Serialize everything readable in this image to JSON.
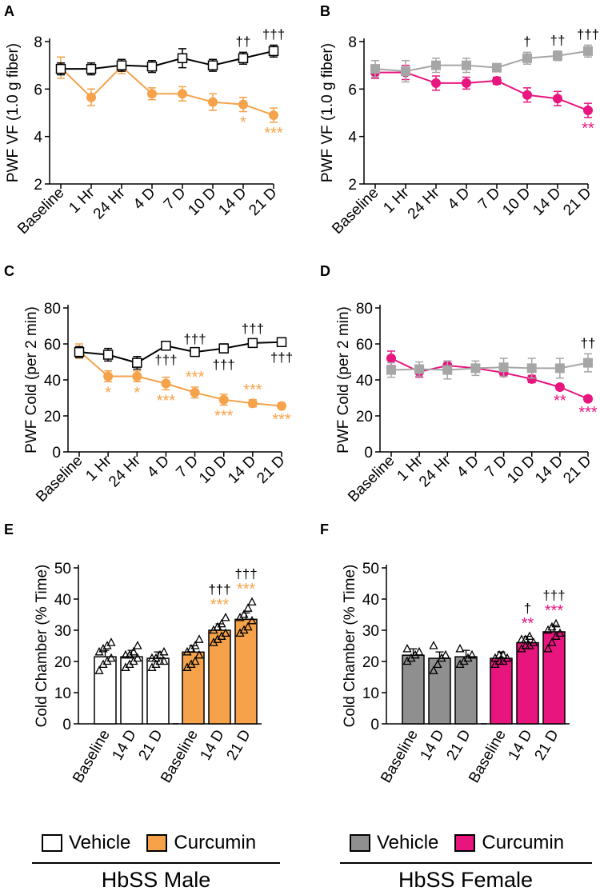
{
  "colors": {
    "vehicle_male": "#ffffff",
    "curcumin_male": "#f5a24a",
    "vehicle_female": "#a6a6a6",
    "curcumin_female": "#e8157f",
    "vehicle_female_bar": "#8f8f8f",
    "vehicle_male_line": "#000000"
  },
  "chart_data": [
    {
      "panel": "A",
      "type": "line",
      "ylabel": "PWF VF (1.0 g fiber)",
      "ylim": [
        2,
        8
      ],
      "yticks": [
        2,
        4,
        6,
        8
      ],
      "categories": [
        "Baseline",
        "1 Hr",
        "24 Hr",
        "4 D",
        "7 D",
        "10 D",
        "14 D",
        "21 D"
      ],
      "series": [
        {
          "name": "Vehicle",
          "values": [
            6.85,
            6.85,
            7.0,
            6.95,
            7.3,
            7.0,
            7.3,
            7.6
          ],
          "err": [
            0.25,
            0.25,
            0.25,
            0.25,
            0.4,
            0.25,
            0.25,
            0.25
          ]
        },
        {
          "name": "Curcumin",
          "values": [
            6.9,
            5.65,
            6.95,
            5.8,
            5.8,
            5.45,
            5.35,
            4.9
          ],
          "err": [
            0.45,
            0.35,
            0.3,
            0.25,
            0.3,
            0.35,
            0.3,
            0.3
          ]
        }
      ],
      "annotations_vehicle": [
        {
          "index": 6,
          "text": "††"
        },
        {
          "index": 7,
          "text": "†††"
        }
      ],
      "annotations_curcumin": [
        {
          "index": 6,
          "text": "*"
        },
        {
          "index": 7,
          "text": "***"
        }
      ]
    },
    {
      "panel": "B",
      "type": "line",
      "ylabel": "PWF VF (1.0 g fiber)",
      "ylim": [
        2,
        8
      ],
      "yticks": [
        2,
        4,
        6,
        8
      ],
      "categories": [
        "Baseline",
        "1 Hr",
        "24 Hr",
        "4 D",
        "7 D",
        "10 D",
        "14 D",
        "21 D"
      ],
      "series": [
        {
          "name": "Vehicle",
          "values": [
            6.85,
            6.75,
            7.0,
            7.0,
            6.9,
            7.3,
            7.4,
            7.6
          ],
          "err": [
            0.35,
            0.45,
            0.3,
            0.3,
            0.15,
            0.25,
            0.2,
            0.25
          ]
        },
        {
          "name": "Curcumin",
          "values": [
            6.7,
            6.7,
            6.25,
            6.25,
            6.35,
            5.75,
            5.6,
            5.1
          ],
          "err": [
            0.25,
            0.3,
            0.3,
            0.25,
            0.15,
            0.3,
            0.3,
            0.3
          ]
        }
      ],
      "annotations_vehicle": [
        {
          "index": 5,
          "text": "†"
        },
        {
          "index": 6,
          "text": "††"
        },
        {
          "index": 7,
          "text": "†††"
        }
      ],
      "annotations_curcumin": [
        {
          "index": 7,
          "text": "**"
        }
      ]
    },
    {
      "panel": "C",
      "type": "line",
      "ylabel": "PWF Cold (per 2 min)",
      "ylim": [
        0,
        80
      ],
      "yticks": [
        0,
        20,
        40,
        60,
        80
      ],
      "categories": [
        "Baseline",
        "1 Hr",
        "24 Hr",
        "4 D",
        "7 D",
        "10 D",
        "14 D",
        "21 D"
      ],
      "series": [
        {
          "name": "Vehicle",
          "values": [
            55.5,
            54,
            49.5,
            59,
            55.5,
            57.5,
            60.5,
            61
          ],
          "err": [
            3,
            3.5,
            3.5,
            1.5,
            2,
            2.5,
            2,
            2
          ]
        },
        {
          "name": "Curcumin",
          "values": [
            56,
            42,
            42,
            38,
            33,
            29,
            27,
            25.5
          ],
          "err": [
            4,
            3,
            3,
            3.5,
            3,
            3,
            2,
            1.5
          ]
        }
      ],
      "annotations_vehicle": [
        {
          "index": 3,
          "text": "†††"
        },
        {
          "index": 4,
          "text": "†††"
        },
        {
          "index": 5,
          "text": "†††"
        },
        {
          "index": 6,
          "text": "†††"
        },
        {
          "index": 7,
          "text": "†††"
        }
      ],
      "annotations_curcumin": [
        {
          "index": 1,
          "text": "*"
        },
        {
          "index": 2,
          "text": "*"
        },
        {
          "index": 3,
          "text": "***"
        },
        {
          "index": 4,
          "text": "***"
        },
        {
          "index": 5,
          "text": "***"
        },
        {
          "index": 6,
          "text": "***"
        },
        {
          "index": 7,
          "text": "***"
        }
      ]
    },
    {
      "panel": "D",
      "type": "line",
      "ylabel": "PWF Cold (per 2 min)",
      "ylim": [
        0,
        80
      ],
      "yticks": [
        0,
        20,
        40,
        60,
        80
      ],
      "categories": [
        "Baseline",
        "1 Hr",
        "24 Hr",
        "4 D",
        "7 D",
        "10 D",
        "14 D",
        "21 D"
      ],
      "series": [
        {
          "name": "Vehicle",
          "values": [
            45.5,
            46,
            45.5,
            46.5,
            47,
            46.5,
            46.5,
            49.5
          ],
          "err": [
            4,
            4,
            5,
            4,
            5,
            5.5,
            5.5,
            5
          ]
        },
        {
          "name": "Curcumin",
          "values": [
            52,
            44.5,
            48,
            46.5,
            44,
            40.5,
            36,
            29.5
          ],
          "err": [
            4,
            3,
            2.5,
            2,
            2,
            2,
            1.5,
            1.5
          ]
        }
      ],
      "annotations_vehicle": [
        {
          "index": 7,
          "text": "††"
        }
      ],
      "annotations_curcumin": [
        {
          "index": 6,
          "text": "**"
        },
        {
          "index": 7,
          "text": "***"
        }
      ]
    },
    {
      "panel": "E",
      "type": "bar",
      "ylabel": "Cold Chamber (% Time)",
      "ylim": [
        0,
        50
      ],
      "yticks": [
        0,
        10,
        20,
        30,
        40,
        50
      ],
      "categories": [
        "Baseline",
        "14 D",
        "21 D",
        "Baseline",
        "14 D",
        "21 D"
      ],
      "groups": [
        "Vehicle",
        "Vehicle",
        "Vehicle",
        "Curcumin",
        "Curcumin",
        "Curcumin"
      ],
      "values": [
        21.5,
        21.5,
        21,
        23,
        30,
        33.5
      ],
      "points": [
        [
          17,
          19,
          20,
          21,
          23,
          24,
          25,
          26
        ],
        [
          18,
          19,
          20,
          21,
          22,
          22,
          23,
          25
        ],
        [
          18,
          19,
          20,
          20,
          21,
          21,
          22,
          23
        ],
        [
          18,
          19,
          20,
          22,
          23,
          24,
          25,
          27
        ],
        [
          26,
          27,
          28,
          29,
          30,
          31,
          32,
          34
        ],
        [
          29,
          30,
          31,
          33,
          34,
          35,
          37,
          39
        ]
      ],
      "annotations_sig": [
        {
          "index": 4,
          "text": "***"
        },
        {
          "index": 5,
          "text": "***"
        }
      ],
      "annotations_dagger": [
        {
          "index": 4,
          "text": "†††"
        },
        {
          "index": 5,
          "text": "†††"
        }
      ]
    },
    {
      "panel": "F",
      "type": "bar",
      "ylabel": "Cold Chamber (% Time)",
      "ylim": [
        0,
        50
      ],
      "yticks": [
        0,
        10,
        20,
        30,
        40,
        50
      ],
      "categories": [
        "Baseline",
        "14 D",
        "21 D",
        "Baseline",
        "14 D",
        "21 D"
      ],
      "groups": [
        "Vehicle",
        "Vehicle",
        "Vehicle",
        "Curcumin",
        "Curcumin",
        "Curcumin"
      ],
      "values": [
        22,
        21,
        21.5,
        21,
        26,
        29.5
      ],
      "points": [
        [
          20,
          21,
          22,
          23,
          24
        ],
        [
          17,
          19,
          21,
          22,
          25
        ],
        [
          19,
          20,
          21,
          22,
          24
        ],
        [
          19,
          20,
          20,
          21,
          21,
          22,
          22
        ],
        [
          24,
          25,
          25,
          26,
          27,
          27,
          28
        ],
        [
          24,
          26,
          28,
          29,
          30,
          31,
          32
        ]
      ],
      "annotations_sig": [
        {
          "index": 4,
          "text": "**"
        },
        {
          "index": 5,
          "text": "***"
        }
      ],
      "annotations_dagger": [
        {
          "index": 4,
          "text": "†"
        },
        {
          "index": 5,
          "text": "†††"
        }
      ]
    }
  ],
  "legend_male": {
    "vehicle": "Vehicle",
    "curcumin": "Curcumin"
  },
  "legend_female": {
    "vehicle": "Vehicle",
    "curcumin": "Curcumin"
  },
  "group_titles": {
    "male": "HbSS Male",
    "female": "HbSS Female"
  }
}
